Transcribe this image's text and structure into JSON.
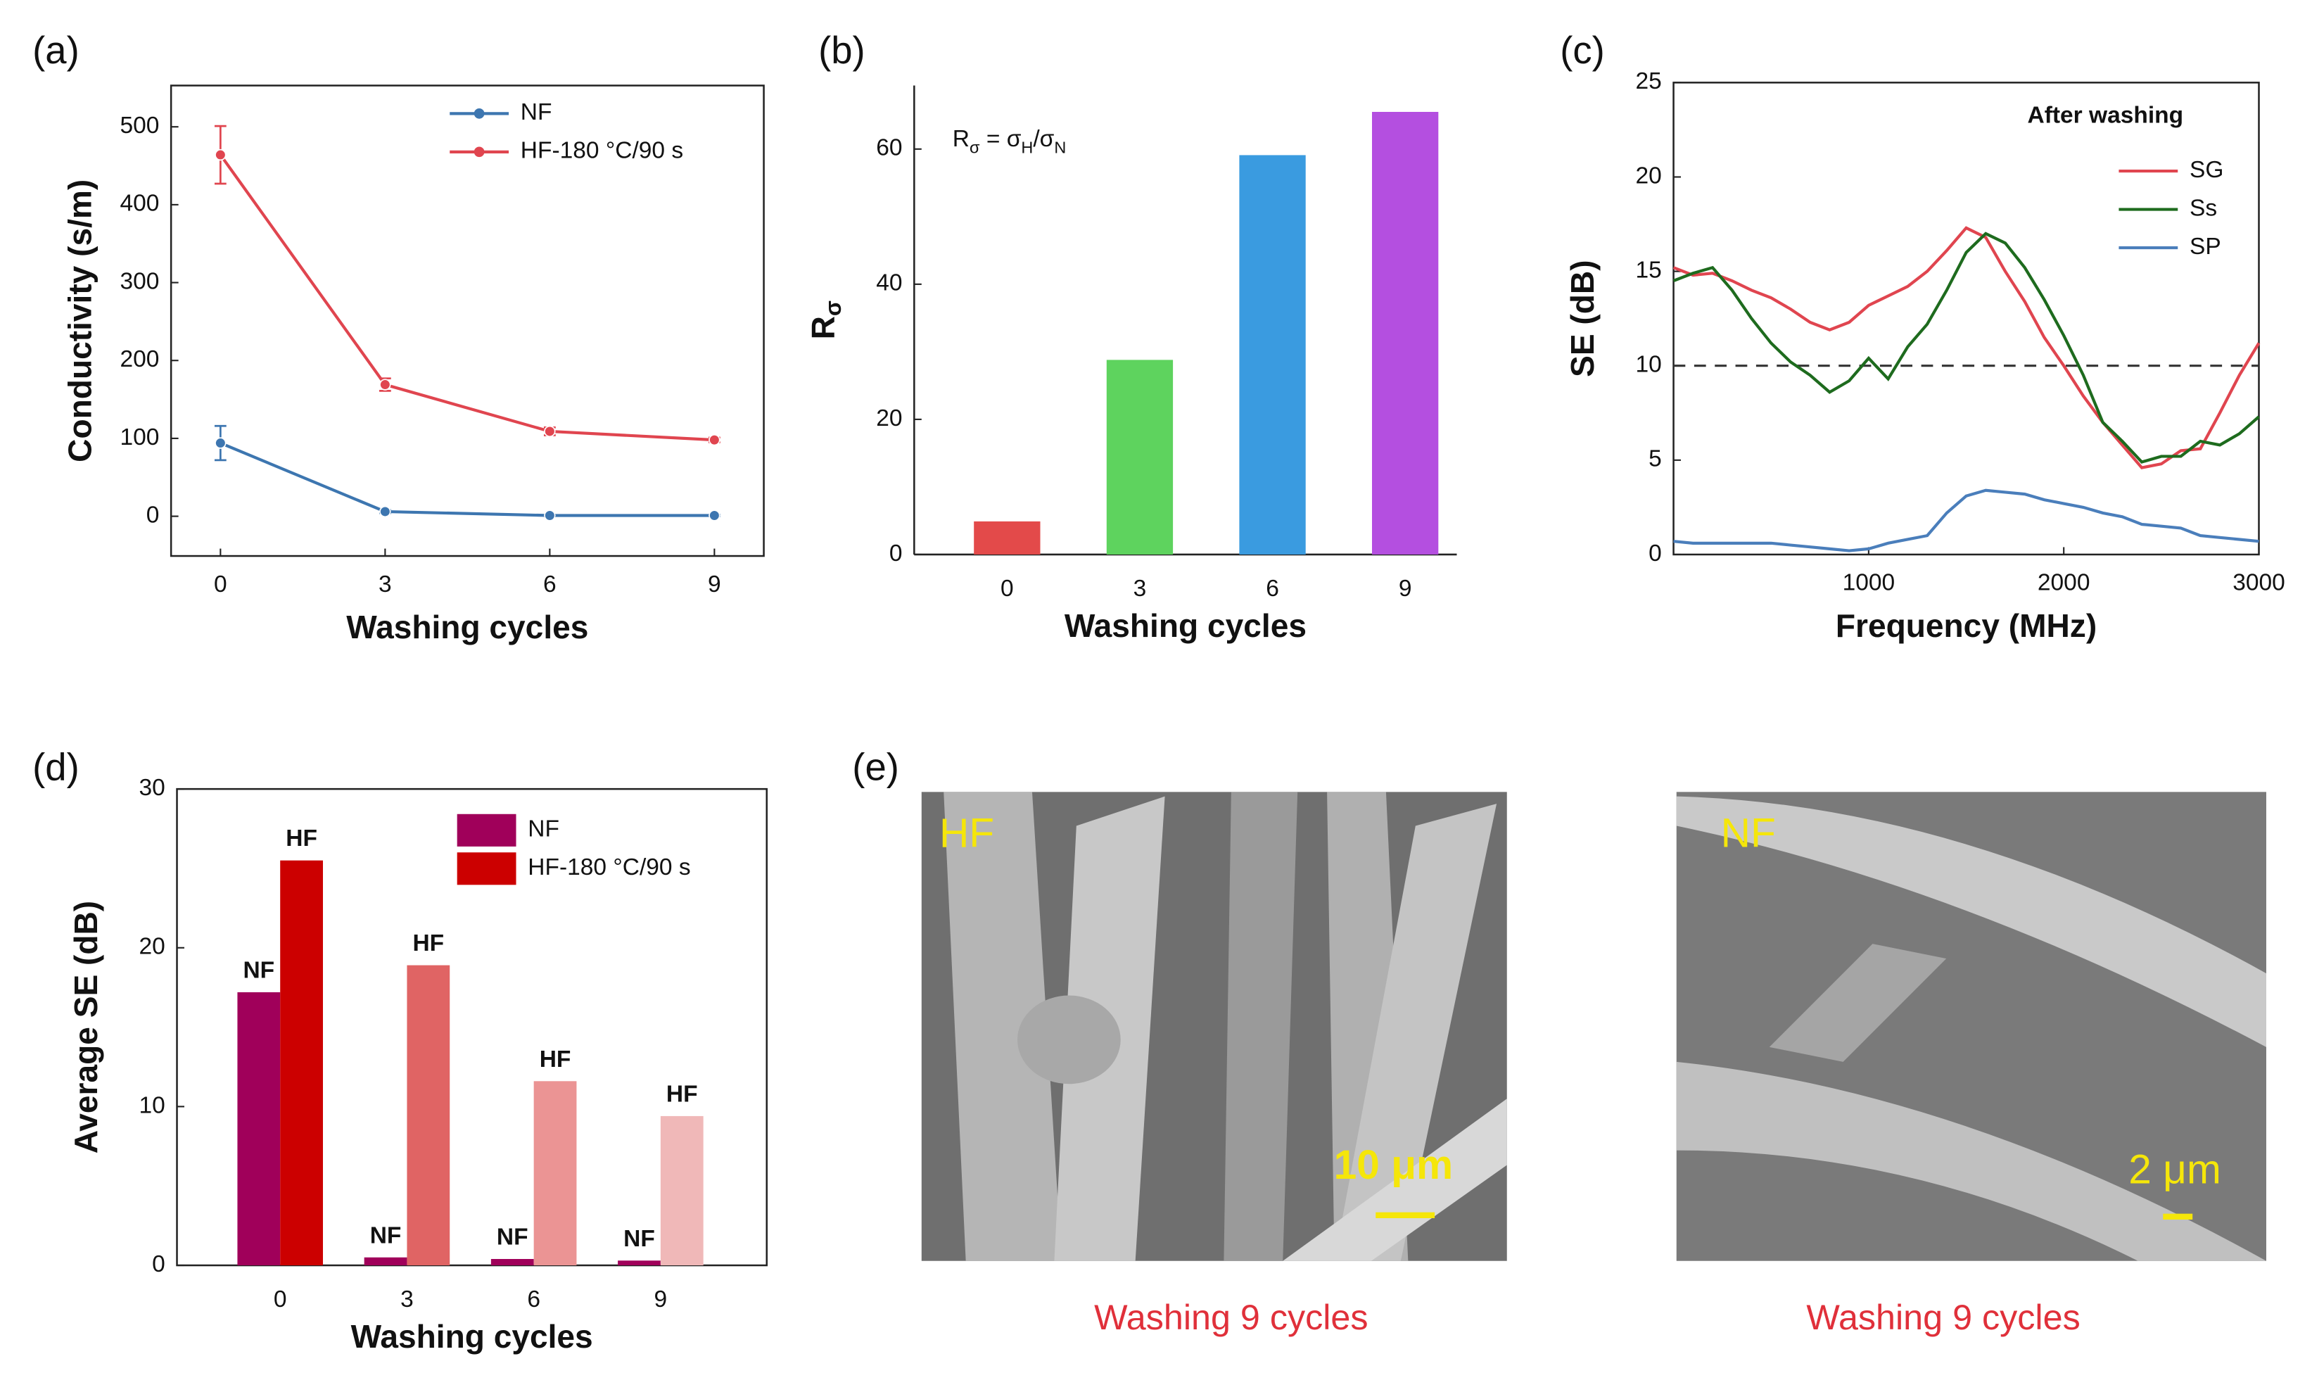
{
  "chart_data": [
    {
      "type": "line",
      "panel_label": "(a)",
      "x_label": "Washing cycles",
      "y_label": "Conductivity (s/m)",
      "x": [
        0,
        3,
        6,
        9
      ],
      "xlim": [
        -0.9,
        9.9
      ],
      "xticks": [
        0,
        3,
        6,
        9
      ],
      "ylim": [
        -51,
        553
      ],
      "yticks": [
        0,
        100,
        200,
        300,
        400,
        500
      ],
      "markers": true,
      "frame": true,
      "series": [
        {
          "name": "NF",
          "color": "#3d76b0",
          "values": [
            94,
            6,
            1,
            1
          ],
          "errors": [
            22,
            2,
            1,
            1
          ]
        },
        {
          "name": "HF-180 °C/90 s",
          "color": "#e0454f",
          "values": [
            464,
            169,
            109,
            98
          ],
          "errors": [
            37,
            8,
            5,
            3
          ]
        }
      ]
    },
    {
      "type": "bar",
      "panel_label": "(b)",
      "x_label": "Washing cycles",
      "y_label": [
        "R",
        "σ"
      ],
      "annotation": [
        "R",
        "σ",
        " = σ",
        "H",
        "/σ",
        "N"
      ],
      "categories": [
        "0",
        "3",
        "6",
        "9"
      ],
      "values": [
        4.9,
        28.8,
        59.1,
        65.5
      ],
      "colors": [
        "#e34a4a",
        "#5ed35e",
        "#3a9be0",
        "#b44fe0"
      ],
      "ylim": [
        0,
        69.4
      ],
      "yticks": [
        0,
        20,
        40,
        60
      ],
      "frame": false
    },
    {
      "type": "line",
      "panel_label": "(c)",
      "x_label": "Frequency (MHz)",
      "y_label": "SE (dB)",
      "legend_title": "After washing",
      "reference_line": 10,
      "x": [
        0,
        100,
        200,
        300,
        400,
        500,
        600,
        700,
        800,
        900,
        1000,
        1100,
        1200,
        1300,
        1400,
        1500,
        1600,
        1700,
        1800,
        1900,
        2000,
        2100,
        2200,
        2300,
        2400,
        2500,
        2600,
        2700,
        2800,
        2900,
        3000
      ],
      "xlim": [
        0,
        3000
      ],
      "xticks": [
        1000,
        2000,
        3000
      ],
      "ylim": [
        0,
        25
      ],
      "yticks": [
        0,
        5,
        10,
        15,
        20,
        25
      ],
      "markers": false,
      "frame": true,
      "series": [
        {
          "name": "SG",
          "color": "#e0454f",
          "values": [
            15.2,
            14.8,
            14.9,
            14.5,
            14.0,
            13.6,
            13.0,
            12.3,
            11.9,
            12.3,
            13.2,
            13.7,
            14.2,
            15.0,
            16.1,
            17.3,
            16.8,
            15.0,
            13.4,
            11.5,
            10.0,
            8.4,
            7.0,
            5.8,
            4.6,
            4.8,
            5.5,
            5.6,
            7.5,
            9.5,
            11.2
          ]
        },
        {
          "name": "Ss",
          "color": "#1e6b1e",
          "values": [
            14.5,
            14.9,
            15.2,
            14.0,
            12.5,
            11.2,
            10.2,
            9.5,
            8.6,
            9.2,
            10.4,
            9.3,
            11.0,
            12.2,
            14.0,
            16.0,
            17.0,
            16.5,
            15.2,
            13.5,
            11.6,
            9.5,
            7.0,
            6.0,
            4.9,
            5.2,
            5.2,
            6.0,
            5.8,
            6.4,
            7.3
          ]
        },
        {
          "name": "SP",
          "color": "#4a7ebb",
          "values": [
            0.7,
            0.6,
            0.6,
            0.6,
            0.6,
            0.6,
            0.5,
            0.4,
            0.3,
            0.2,
            0.3,
            0.6,
            0.8,
            1.0,
            2.2,
            3.1,
            3.4,
            3.3,
            3.2,
            2.9,
            2.7,
            2.5,
            2.2,
            2.0,
            1.6,
            1.5,
            1.4,
            1.0,
            0.9,
            0.8,
            0.7
          ]
        }
      ]
    },
    {
      "type": "bar",
      "panel_label": "(d)",
      "x_label": "Washing cycles",
      "y_label": "Average SE (dB)",
      "categories": [
        "0",
        "3",
        "6",
        "9"
      ],
      "ylim": [
        0,
        30
      ],
      "yticks": [
        0,
        10,
        20,
        30
      ],
      "frame": true,
      "series": [
        {
          "name": "NF",
          "bar_label": "NF",
          "colors": [
            "#a0005a",
            "#a0005a",
            "#a0005a",
            "#a0005a"
          ],
          "values": [
            17.2,
            0.5,
            0.4,
            0.3
          ]
        },
        {
          "name": "HF-180 °C/90 s",
          "bar_label": "HF",
          "colors": [
            "#cc0000",
            "#e06464",
            "#eb9494",
            "#f0b8b8"
          ],
          "values": [
            25.5,
            18.9,
            11.6,
            9.4
          ]
        }
      ]
    }
  ],
  "image_panel": {
    "label": "(e)",
    "images": [
      {
        "label": "HF",
        "scale_bar": "10 μm",
        "caption": "Washing 9 cycles"
      },
      {
        "label": "NF",
        "scale_bar": "2 μm",
        "caption": "Washing 9 cycles"
      }
    ]
  }
}
